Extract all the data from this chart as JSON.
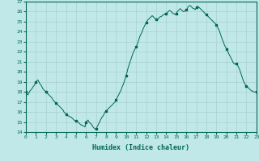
{
  "title": "",
  "xlabel": "Humidex (Indice chaleur)",
  "ylabel": "",
  "xlim": [
    0,
    23
  ],
  "ylim": [
    14,
    27
  ],
  "yticks": [
    14,
    15,
    16,
    17,
    18,
    19,
    20,
    21,
    22,
    23,
    24,
    25,
    26,
    27
  ],
  "xticks": [
    0,
    1,
    2,
    3,
    4,
    5,
    6,
    7,
    8,
    9,
    10,
    11,
    12,
    13,
    14,
    15,
    16,
    17,
    18,
    19,
    20,
    21,
    22,
    23
  ],
  "bg_color": "#c0e8e8",
  "grid_color": "#a8d0d0",
  "line_color": "#006655",
  "marker_color": "#006655",
  "x": [
    0.0,
    0.1,
    0.2,
    0.3,
    0.4,
    0.5,
    0.6,
    0.7,
    0.8,
    0.9,
    1.0,
    1.1,
    1.2,
    1.3,
    1.4,
    1.5,
    1.6,
    1.7,
    1.8,
    1.9,
    2.0,
    2.1,
    2.2,
    2.3,
    2.4,
    2.5,
    2.6,
    2.7,
    2.8,
    2.9,
    3.0,
    3.1,
    3.2,
    3.3,
    3.4,
    3.5,
    3.6,
    3.7,
    3.8,
    3.9,
    4.0,
    4.1,
    4.2,
    4.3,
    4.4,
    4.5,
    4.6,
    4.7,
    4.8,
    4.9,
    5.0,
    5.1,
    5.2,
    5.3,
    5.4,
    5.5,
    5.6,
    5.7,
    5.8,
    5.9,
    6.0,
    6.1,
    6.2,
    6.3,
    6.4,
    6.5,
    6.6,
    6.7,
    6.8,
    6.9,
    7.0,
    7.1,
    7.2,
    7.3,
    7.4,
    7.5,
    7.6,
    7.7,
    7.8,
    7.9,
    8.0,
    8.1,
    8.2,
    8.3,
    8.4,
    8.5,
    8.6,
    8.7,
    8.8,
    8.9,
    9.0,
    9.1,
    9.2,
    9.3,
    9.4,
    9.5,
    9.6,
    9.7,
    9.8,
    9.9,
    10.0,
    10.1,
    10.2,
    10.3,
    10.4,
    10.5,
    10.6,
    10.7,
    10.8,
    10.9,
    11.0,
    11.1,
    11.2,
    11.3,
    11.4,
    11.5,
    11.6,
    11.7,
    11.8,
    11.9,
    12.0,
    12.1,
    12.2,
    12.3,
    12.4,
    12.5,
    12.6,
    12.7,
    12.8,
    12.9,
    13.0,
    13.1,
    13.2,
    13.3,
    13.4,
    13.5,
    13.6,
    13.7,
    13.8,
    13.9,
    14.0,
    14.1,
    14.2,
    14.3,
    14.4,
    14.5,
    14.6,
    14.7,
    14.8,
    14.9,
    15.0,
    15.1,
    15.2,
    15.3,
    15.4,
    15.5,
    15.6,
    15.7,
    15.8,
    15.9,
    16.0,
    16.1,
    16.2,
    16.3,
    16.4,
    16.5,
    16.6,
    16.7,
    16.8,
    16.9,
    17.0,
    17.1,
    17.2,
    17.3,
    17.4,
    17.5,
    17.6,
    17.7,
    17.8,
    17.9,
    18.0,
    18.1,
    18.2,
    18.3,
    18.4,
    18.5,
    18.6,
    18.7,
    18.8,
    18.9,
    19.0,
    19.1,
    19.2,
    19.3,
    19.4,
    19.5,
    19.6,
    19.7,
    19.8,
    19.9,
    20.0,
    20.1,
    20.2,
    20.3,
    20.4,
    20.5,
    20.6,
    20.7,
    20.8,
    20.9,
    21.0,
    21.1,
    21.2,
    21.3,
    21.4,
    21.5,
    21.6,
    21.7,
    21.8,
    21.9,
    22.0,
    22.1,
    22.2,
    22.3,
    22.4,
    22.5,
    22.6,
    22.7,
    22.8,
    22.9,
    23.0
  ],
  "y": [
    18.0,
    17.8,
    17.7,
    17.9,
    18.1,
    18.2,
    18.3,
    18.5,
    18.6,
    18.8,
    19.0,
    19.1,
    19.2,
    19.0,
    18.8,
    18.7,
    18.5,
    18.3,
    18.2,
    18.1,
    18.0,
    17.9,
    17.8,
    17.7,
    17.6,
    17.5,
    17.4,
    17.2,
    17.1,
    17.0,
    16.9,
    16.8,
    16.7,
    16.6,
    16.5,
    16.4,
    16.3,
    16.2,
    16.0,
    15.9,
    15.8,
    15.7,
    15.6,
    15.6,
    15.5,
    15.5,
    15.4,
    15.3,
    15.2,
    15.1,
    15.1,
    15.0,
    15.0,
    14.9,
    14.8,
    14.7,
    14.7,
    14.6,
    14.6,
    14.5,
    15.0,
    15.1,
    15.2,
    15.0,
    14.9,
    14.8,
    14.7,
    14.5,
    14.4,
    14.3,
    14.3,
    14.5,
    14.7,
    14.9,
    15.1,
    15.3,
    15.5,
    15.6,
    15.8,
    16.0,
    16.1,
    16.2,
    16.3,
    16.4,
    16.5,
    16.6,
    16.7,
    16.8,
    16.9,
    17.0,
    17.2,
    17.4,
    17.6,
    17.8,
    18.0,
    18.2,
    18.5,
    18.7,
    19.0,
    19.3,
    19.6,
    20.0,
    20.4,
    20.7,
    21.0,
    21.3,
    21.6,
    21.9,
    22.1,
    22.3,
    22.5,
    22.7,
    23.0,
    23.3,
    23.6,
    23.8,
    24.0,
    24.3,
    24.5,
    24.7,
    24.9,
    25.1,
    25.2,
    25.3,
    25.4,
    25.5,
    25.6,
    25.5,
    25.4,
    25.3,
    25.2,
    25.1,
    25.3,
    25.4,
    25.5,
    25.5,
    25.6,
    25.7,
    25.7,
    25.8,
    25.8,
    25.9,
    26.0,
    26.1,
    26.1,
    26.0,
    25.9,
    25.8,
    25.8,
    25.7,
    25.8,
    26.0,
    26.1,
    26.2,
    26.3,
    26.2,
    26.1,
    26.0,
    26.0,
    26.1,
    26.2,
    26.3,
    26.5,
    26.6,
    26.6,
    26.5,
    26.4,
    26.3,
    26.3,
    26.2,
    26.4,
    26.5,
    26.5,
    26.4,
    26.3,
    26.2,
    26.1,
    26.0,
    25.9,
    25.8,
    25.7,
    25.6,
    25.5,
    25.4,
    25.3,
    25.2,
    25.1,
    25.0,
    24.9,
    24.8,
    24.7,
    24.5,
    24.3,
    24.1,
    23.8,
    23.5,
    23.2,
    23.0,
    22.7,
    22.5,
    22.3,
    22.1,
    21.9,
    21.7,
    21.5,
    21.3,
    21.1,
    20.9,
    20.8,
    20.8,
    20.8,
    20.7,
    20.5,
    20.3,
    20.0,
    19.7,
    19.4,
    19.1,
    18.9,
    18.7,
    18.6,
    18.5,
    18.4,
    18.3,
    18.2,
    18.1,
    18.1,
    18.0,
    18.0,
    18.0,
    18.0
  ]
}
